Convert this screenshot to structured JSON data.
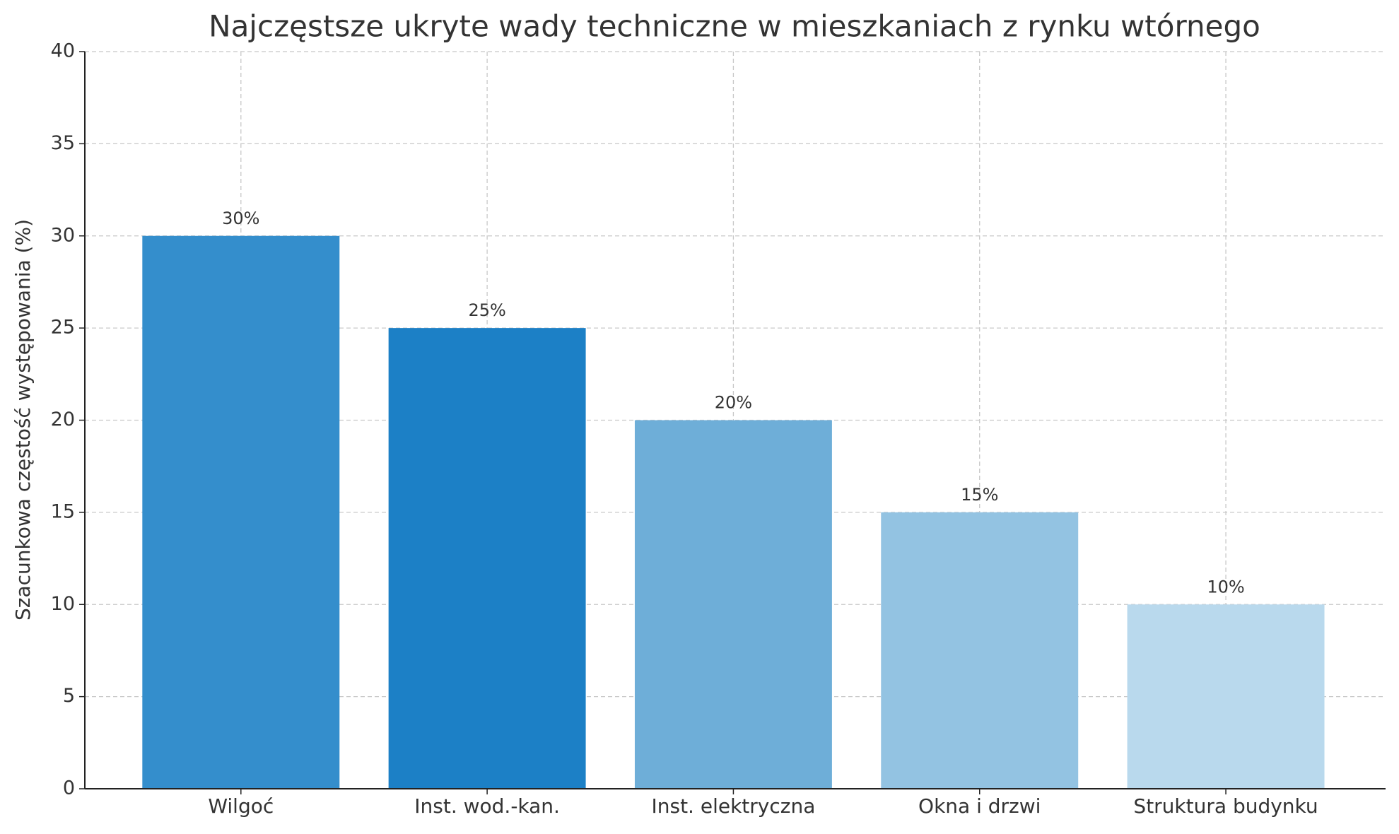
{
  "chart_data": {
    "type": "bar",
    "title": "Najczęstsze ukryte wady techniczne w mieszkaniach z rynku wtórnego",
    "y_label": "Szacunkowa częstość występowania (%)",
    "categories": [
      "Wilgoć",
      "Inst. wod.-kan.",
      "Inst. elektryczna",
      "Okna i drzwi",
      "Struktura budynku"
    ],
    "values": [
      30,
      25,
      20,
      15,
      10
    ],
    "value_labels": [
      "30%",
      "25%",
      "20%",
      "15%",
      "10%"
    ],
    "colors": [
      "#348ecc",
      "#1c80c6",
      "#6eaed8",
      "#93c3e2",
      "#b9d9ed"
    ],
    "ylim": [
      0,
      40
    ],
    "yticks": [
      0,
      5,
      10,
      15,
      20,
      25,
      30,
      35,
      40
    ],
    "grid": true
  }
}
